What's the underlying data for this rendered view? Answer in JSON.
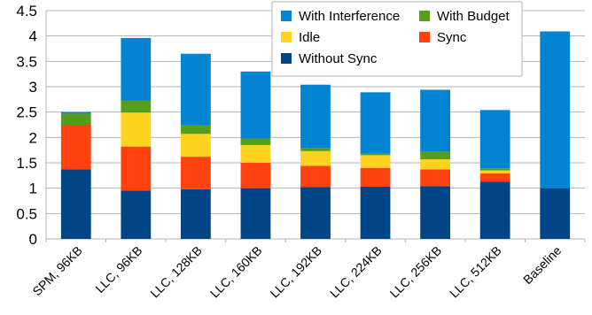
{
  "chart_data": {
    "type": "bar",
    "stacked": true,
    "categories": [
      "SPM, 96KB",
      "LLC, 96KB",
      "LLC, 128KB",
      "LLC, 160KB",
      "LLC, 192KB",
      "LLC, 224KB",
      "LLC, 256KB",
      "LLC, 512KB",
      "Baseline"
    ],
    "series": [
      {
        "name": "Without Sync",
        "color": "#004586",
        "values": [
          1.37,
          0.95,
          0.98,
          1.0,
          1.02,
          1.03,
          1.04,
          1.13,
          1.0
        ]
      },
      {
        "name": "Sync",
        "color": "#ff420e",
        "values": [
          0.88,
          0.87,
          0.64,
          0.5,
          0.42,
          0.37,
          0.33,
          0.16,
          0
        ]
      },
      {
        "name": "Idle",
        "color": "#ffd320",
        "values": [
          0,
          0.67,
          0.45,
          0.35,
          0.29,
          0.25,
          0.2,
          0.06,
          0
        ]
      },
      {
        "name": "With Budget",
        "color": "#579d1c",
        "values": [
          0.22,
          0.24,
          0.17,
          0.13,
          0.06,
          0.03,
          0.15,
          0.04,
          0
        ]
      },
      {
        "name": "With Interference",
        "color": "#0084d1",
        "values": [
          0.03,
          1.23,
          1.41,
          1.32,
          1.25,
          1.21,
          1.22,
          1.15,
          3.09
        ]
      }
    ],
    "ylim": [
      0,
      4.5
    ],
    "yticks": [
      "0",
      "0.5",
      "1",
      "1.5",
      "2",
      "2.5",
      "3",
      "3.5",
      "4",
      "4.5"
    ],
    "grid": true,
    "legend": {
      "placement": "top-right",
      "order": [
        "With Interference",
        "With Budget",
        "Idle",
        "Sync",
        "Without Sync"
      ]
    }
  }
}
